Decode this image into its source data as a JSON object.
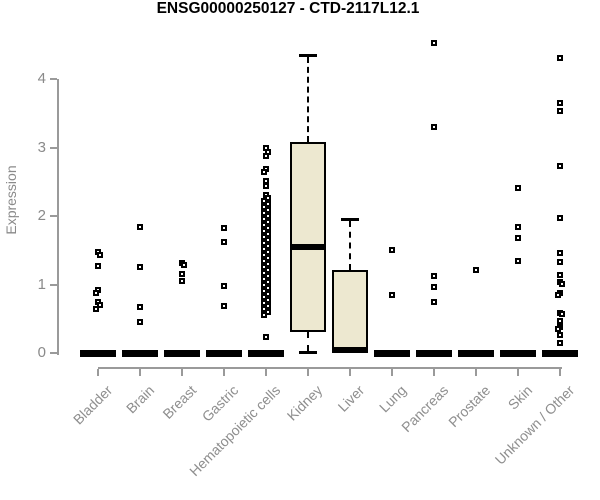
{
  "colors": {
    "box_fill": "#EDE8D0",
    "box_stroke": "#000000",
    "axis": "#9A9A9A",
    "tick_text": "#8A8A8A",
    "x_label_text": "#8E8E8E",
    "title_text": "#000000",
    "background": "#FFFFFF"
  },
  "chart_data": {
    "type": "boxplot",
    "title": "ENSG00000250127 - CTD-2117L12.1",
    "xlabel": "",
    "ylabel": "Expression",
    "ylim": [
      0,
      4.6
    ],
    "yticks": [
      0,
      1,
      2,
      3,
      4
    ],
    "ytick_labels": [
      "0",
      "1",
      "2",
      "3",
      "4"
    ],
    "grid": false,
    "legend": "none",
    "categories": [
      "Bladder",
      "Brain",
      "Breast",
      "Gastric",
      "Hematopoietic cells",
      "Kidney",
      "Liver",
      "Lung",
      "Pancreas",
      "Prostate",
      "Skin",
      "Unknown / Other"
    ],
    "series": [
      {
        "name": "Bladder",
        "zero_bar": true,
        "box": null,
        "points": [
          1.47,
          1.43,
          1.27,
          0.92,
          0.88,
          0.75,
          0.7,
          0.64
        ]
      },
      {
        "name": "Brain",
        "zero_bar": true,
        "box": null,
        "points": [
          1.84,
          1.25,
          0.67,
          0.45
        ]
      },
      {
        "name": "Breast",
        "zero_bar": true,
        "box": null,
        "points": [
          1.32,
          1.29,
          1.15,
          1.05
        ]
      },
      {
        "name": "Gastric",
        "zero_bar": true,
        "box": null,
        "points": [
          1.82,
          1.62,
          0.98,
          0.69
        ]
      },
      {
        "name": "Hematopoietic cells",
        "zero_bar": true,
        "box": null,
        "points": [
          2.99,
          2.94,
          2.87,
          2.69,
          2.64,
          2.51,
          2.44,
          2.31,
          2.26,
          2.22,
          2.18,
          2.13,
          2.09,
          2.04,
          2.0,
          1.96,
          1.91,
          1.87,
          1.82,
          1.78,
          1.74,
          1.69,
          1.65,
          1.61,
          1.56,
          1.52,
          1.47,
          1.43,
          1.39,
          1.34,
          1.3,
          1.26,
          1.21,
          1.17,
          1.12,
          1.08,
          1.04,
          0.99,
          0.95,
          0.91,
          0.86,
          0.82,
          0.77,
          0.73,
          0.69,
          0.64,
          0.6,
          0.55,
          0.23
        ]
      },
      {
        "name": "Kidney",
        "zero_bar": false,
        "box": {
          "q1": 0.3,
          "median": 1.55,
          "q3": 3.08,
          "whisker_low": 0.02,
          "whisker_high": 4.35
        },
        "points": []
      },
      {
        "name": "Liver",
        "zero_bar": false,
        "box": {
          "q1": 0.03,
          "median": 0.05,
          "q3": 1.21,
          "whisker_low": null,
          "whisker_high": 1.95
        },
        "points": []
      },
      {
        "name": "Lung",
        "zero_bar": true,
        "box": null,
        "points": [
          1.5,
          0.85
        ]
      },
      {
        "name": "Pancreas",
        "zero_bar": true,
        "box": null,
        "points": [
          4.53,
          3.3,
          1.12,
          0.96,
          0.74
        ]
      },
      {
        "name": "Prostate",
        "zero_bar": true,
        "box": null,
        "points": [
          1.21
        ]
      },
      {
        "name": "Skin",
        "zero_bar": true,
        "box": null,
        "points": [
          2.41,
          1.84,
          1.68,
          1.34
        ]
      },
      {
        "name": "Unknown / Other",
        "zero_bar": true,
        "box": null,
        "points": [
          4.31,
          3.65,
          3.53,
          2.73,
          1.97,
          1.46,
          1.33,
          1.14,
          1.03,
          1.01,
          0.87,
          0.85,
          0.59,
          0.57,
          0.47,
          0.38,
          0.35,
          0.26,
          0.15
        ]
      }
    ]
  }
}
